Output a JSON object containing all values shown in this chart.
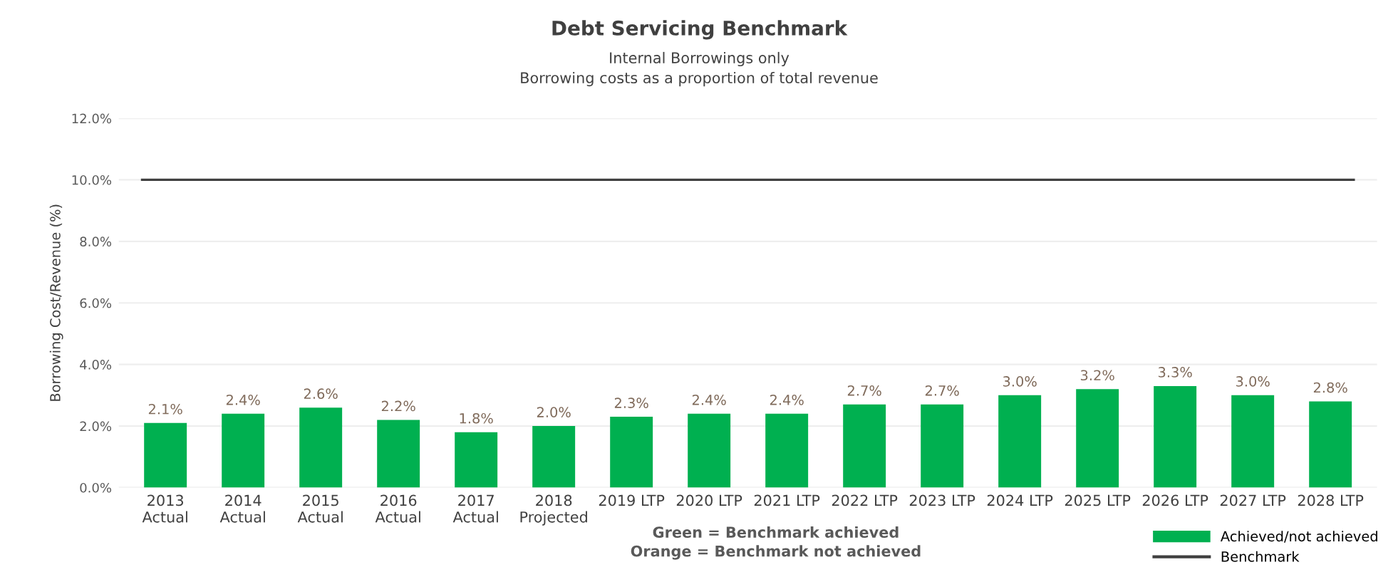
{
  "chart_data": {
    "type": "bar",
    "title": "Debt Servicing Benchmark",
    "subtitle": "Internal Borrowings only\nBorrowing costs as a proportion of total revenue",
    "ylabel": "Borrowing Cost/Revenue (%)",
    "categories": [
      "2013\nActual",
      "2014\nActual",
      "2015\nActual",
      "2016\nActual",
      "2017\nActual",
      "2018\nProjected",
      "2019 LTP",
      "2020 LTP",
      "2021 LTP",
      "2022 LTP",
      "2023 LTP",
      "2024 LTP",
      "2025 LTP",
      "2026 LTP",
      "2027 LTP",
      "2028 LTP"
    ],
    "series": [
      {
        "name": "Achieved/not achieved",
        "color": "#00b050",
        "values": [
          2.1,
          2.4,
          2.6,
          2.2,
          1.8,
          2.0,
          2.3,
          2.4,
          2.4,
          2.7,
          2.7,
          3.0,
          3.2,
          3.3,
          3.0,
          2.8
        ]
      }
    ],
    "value_labels": [
      "2.1%",
      "2.4%",
      "2.6%",
      "2.2%",
      "1.8%",
      "2.0%",
      "2.3%",
      "2.4%",
      "2.4%",
      "2.7%",
      "2.7%",
      "3.0%",
      "3.2%",
      "3.3%",
      "3.0%",
      "2.8%"
    ],
    "ref_lines": [
      {
        "axis": "y",
        "value": 10,
        "label": "Benchmark",
        "color": "#404040",
        "line_style": "solid"
      }
    ],
    "ylim": [
      0,
      12
    ],
    "yticks": [
      {
        "value": 0,
        "label": "0.0%"
      },
      {
        "value": 2,
        "label": "2.0%"
      },
      {
        "value": 4,
        "label": "4.0%"
      },
      {
        "value": 6,
        "label": "6.0%"
      },
      {
        "value": 8,
        "label": "8.0%"
      },
      {
        "value": 10,
        "label": "10.0%"
      },
      {
        "value": 12,
        "label": "12.0%"
      }
    ],
    "grid": "y",
    "legend": "bottom right",
    "annotations": [
      "Green = Benchmark achieved",
      "Orange = Benchmark not achieved"
    ]
  }
}
